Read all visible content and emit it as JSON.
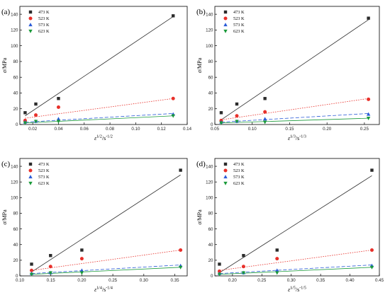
{
  "chart_data": [
    {
      "type": "scatter",
      "label": "(a)",
      "xlabel": {
        "base": "ε̇",
        "sup": "1/2",
        "mid": "/s",
        "sup2": "-1/2"
      },
      "ylabel": "σ/MPa",
      "xlim": [
        0.01,
        0.14
      ],
      "xticks": [
        0.02,
        0.04,
        0.06,
        0.08,
        0.1,
        0.12,
        0.14
      ],
      "xtick_labels": [
        "0.02",
        "0.04",
        "0.06",
        "0.08",
        "0.10",
        "0.12",
        "0.14"
      ],
      "ylim": [
        0,
        150
      ],
      "yticks": [
        0,
        20,
        40,
        60,
        80,
        100,
        120,
        140
      ],
      "ytick_labels": [
        "0",
        "20",
        "40",
        "60",
        "80",
        "100",
        "120",
        "140"
      ],
      "legend_position": "top-left",
      "series": [
        {
          "name": "473 K",
          "marker": "square",
          "color": "#2b2b2b",
          "line_style": "solid",
          "x": [
            0.0141,
            0.0224,
            0.04,
            0.1291
          ],
          "y": [
            15,
            26,
            33,
            138
          ],
          "fit": [
            [
              0.0141,
              11
            ],
            [
              0.1291,
              137
            ]
          ]
        },
        {
          "name": "523 K",
          "marker": "circle",
          "color": "#e8302a",
          "line_style": "dotted",
          "x": [
            0.0141,
            0.0224,
            0.04,
            0.1291
          ],
          "y": [
            5,
            12,
            22,
            33
          ],
          "fit": [
            [
              0.0141,
              8
            ],
            [
              0.1291,
              33
            ]
          ]
        },
        {
          "name": "573 K",
          "marker": "triangle-up",
          "color": "#2a5bd7",
          "line_style": "dashed",
          "x": [
            0.0141,
            0.0224,
            0.04,
            0.1291
          ],
          "y": [
            3,
            4,
            7,
            13
          ],
          "fit": [
            [
              0.0141,
              3
            ],
            [
              0.1291,
              14
            ]
          ]
        },
        {
          "name": "623 K",
          "marker": "triangle-down",
          "color": "#1a9a3a",
          "line_style": "solid",
          "x": [
            0.0141,
            0.0224,
            0.04,
            0.1291
          ],
          "y": [
            2,
            4,
            4,
            11
          ],
          "fit": [
            [
              0.0141,
              2
            ],
            [
              0.1291,
              11
            ]
          ]
        }
      ]
    },
    {
      "type": "scatter",
      "label": "(b)",
      "xlabel": {
        "base": "ε̇",
        "sup": "1/3",
        "mid": "/s",
        "sup2": "-1/3"
      },
      "ylabel": "σ/MPa",
      "xlim": [
        0.05,
        0.27
      ],
      "xticks": [
        0.05,
        0.1,
        0.15,
        0.2,
        0.25
      ],
      "xtick_labels": [
        "0.05",
        "0.10",
        "0.15",
        "0.20",
        "0.25"
      ],
      "ylim": [
        0,
        150
      ],
      "yticks": [
        0,
        20,
        40,
        60,
        80,
        100,
        120,
        140
      ],
      "ytick_labels": [
        "0",
        "20",
        "40",
        "60",
        "80",
        "100",
        "120",
        "140"
      ],
      "legend_position": "top-left",
      "series": [
        {
          "name": "473 K",
          "marker": "square",
          "color": "#2b2b2b",
          "line_style": "solid",
          "x": [
            0.0585,
            0.0794,
            0.117,
            0.2554
          ],
          "y": [
            15,
            26,
            33,
            135
          ],
          "fit": [
            [
              0.0585,
              6
            ],
            [
              0.2554,
              133
            ]
          ]
        },
        {
          "name": "523 K",
          "marker": "circle",
          "color": "#e8302a",
          "line_style": "dotted",
          "x": [
            0.0585,
            0.0794,
            0.117,
            0.2554
          ],
          "y": [
            5,
            11,
            16,
            32
          ],
          "fit": [
            [
              0.0585,
              6
            ],
            [
              0.2554,
              33
            ]
          ]
        },
        {
          "name": "573 K",
          "marker": "triangle-up",
          "color": "#2a5bd7",
          "line_style": "dashed",
          "x": [
            0.0585,
            0.0794,
            0.117,
            0.2554
          ],
          "y": [
            3,
            4,
            7,
            13
          ],
          "fit": [
            [
              0.0585,
              3
            ],
            [
              0.2554,
              14
            ]
          ]
        },
        {
          "name": "623 K",
          "marker": "triangle-down",
          "color": "#1a9a3a",
          "line_style": "solid",
          "x": [
            0.0585,
            0.0794,
            0.117,
            0.2554
          ],
          "y": [
            2,
            4,
            3,
            8
          ],
          "fit": [
            [
              0.0585,
              2
            ],
            [
              0.2554,
              8
            ]
          ]
        }
      ]
    },
    {
      "type": "scatter",
      "label": "(c)",
      "xlabel": {
        "base": "ε̇",
        "sup": "1/4",
        "mid": "/s",
        "sup2": "-1/4"
      },
      "ylabel": "σ/MPa",
      "xlim": [
        0.1,
        0.37
      ],
      "xticks": [
        0.1,
        0.15,
        0.2,
        0.25,
        0.3,
        0.35
      ],
      "xtick_labels": [
        "0.10",
        "0.15",
        "0.20",
        "0.25",
        "0.30",
        "0.35"
      ],
      "ylim": [
        0,
        150
      ],
      "yticks": [
        0,
        20,
        40,
        60,
        80,
        100,
        120,
        140
      ],
      "ytick_labels": [
        "0",
        "20",
        "40",
        "60",
        "80",
        "100",
        "120",
        "140"
      ],
      "legend_position": "top-left",
      "series": [
        {
          "name": "473 K",
          "marker": "square",
          "color": "#2b2b2b",
          "line_style": "solid",
          "x": [
            0.1189,
            0.1495,
            0.2,
            0.3593
          ],
          "y": [
            15,
            26,
            33,
            135
          ],
          "fit": [
            [
              0.1189,
              5
            ],
            [
              0.3593,
              129
            ]
          ]
        },
        {
          "name": "523 K",
          "marker": "circle",
          "color": "#e8302a",
          "line_style": "dotted",
          "x": [
            0.1189,
            0.1495,
            0.2,
            0.3593
          ],
          "y": [
            7,
            12,
            22,
            33
          ],
          "fit": [
            [
              0.1189,
              7
            ],
            [
              0.3593,
              33
            ]
          ]
        },
        {
          "name": "573 K",
          "marker": "triangle-up",
          "color": "#2a5bd7",
          "line_style": "dashed",
          "x": [
            0.1189,
            0.1495,
            0.2,
            0.3593
          ],
          "y": [
            3,
            4,
            7,
            13
          ],
          "fit": [
            [
              0.1189,
              3
            ],
            [
              0.3593,
              14
            ]
          ]
        },
        {
          "name": "623 K",
          "marker": "triangle-down",
          "color": "#1a9a3a",
          "line_style": "solid",
          "x": [
            0.1189,
            0.1495,
            0.2,
            0.3593
          ],
          "y": [
            2,
            4,
            4,
            11
          ],
          "fit": [
            [
              0.1189,
              2
            ],
            [
              0.3593,
              11
            ]
          ]
        }
      ]
    },
    {
      "type": "scatter",
      "label": "(d)",
      "xlabel": {
        "base": "ε̇",
        "sup": "1/5",
        "mid": "/s",
        "sup2": "-1/5"
      },
      "ylabel": "σ/MPa",
      "xlim": [
        0.17,
        0.45
      ],
      "xticks": [
        0.2,
        0.25,
        0.3,
        0.35,
        0.4,
        0.45
      ],
      "xtick_labels": [
        "0.20",
        "0.25",
        "0.30",
        "0.35",
        "0.40",
        "0.45"
      ],
      "ylim": [
        0,
        150
      ],
      "yticks": [
        0,
        20,
        40,
        60,
        80,
        100,
        120,
        140
      ],
      "ytick_labels": [
        "0",
        "20",
        "40",
        "60",
        "80",
        "100",
        "120",
        "140"
      ],
      "legend_position": "top-left",
      "series": [
        {
          "name": "473 K",
          "marker": "square",
          "color": "#2b2b2b",
          "line_style": "solid",
          "x": [
            0.1778,
            0.2188,
            0.2759,
            0.4373
          ],
          "y": [
            15,
            26,
            33,
            135
          ],
          "fit": [
            [
              0.1778,
              4
            ],
            [
              0.4373,
              128
            ]
          ]
        },
        {
          "name": "523 K",
          "marker": "circle",
          "color": "#e8302a",
          "line_style": "dotted",
          "x": [
            0.1778,
            0.2188,
            0.2759,
            0.4373
          ],
          "y": [
            6,
            12,
            22,
            33
          ],
          "fit": [
            [
              0.1778,
              7
            ],
            [
              0.4373,
              33
            ]
          ]
        },
        {
          "name": "573 K",
          "marker": "triangle-up",
          "color": "#2a5bd7",
          "line_style": "dashed",
          "x": [
            0.1778,
            0.2188,
            0.2759,
            0.4373
          ],
          "y": [
            3,
            4,
            7,
            13
          ],
          "fit": [
            [
              0.1778,
              3
            ],
            [
              0.4373,
              14
            ]
          ]
        },
        {
          "name": "623 K",
          "marker": "triangle-down",
          "color": "#1a9a3a",
          "line_style": "solid",
          "x": [
            0.1778,
            0.2188,
            0.2759,
            0.4373
          ],
          "y": [
            2,
            4,
            4,
            11
          ],
          "fit": [
            [
              0.1778,
              2
            ],
            [
              0.4373,
              11
            ]
          ]
        }
      ]
    }
  ]
}
